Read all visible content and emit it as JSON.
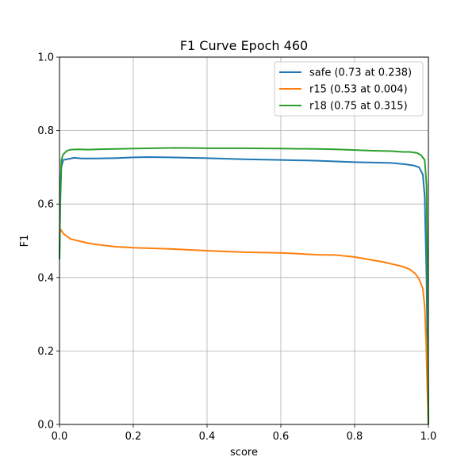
{
  "chart_data": {
    "type": "line",
    "title": "F1 Curve Epoch 460",
    "xlabel": "score",
    "ylabel": "F1",
    "xlim": [
      0,
      1
    ],
    "ylim": [
      0,
      1
    ],
    "grid": true,
    "legend_position": "top-right",
    "x_ticks": [
      "0.0",
      "0.2",
      "0.4",
      "0.6",
      "0.8",
      "1.0"
    ],
    "y_ticks": [
      "0.0",
      "0.2",
      "0.4",
      "0.6",
      "0.8",
      "1.0"
    ],
    "series": [
      {
        "name": "safe (0.73 at 0.238)",
        "color": "#1f77b4",
        "points": [
          [
            0,
            0.45
          ],
          [
            0.002,
            0.6
          ],
          [
            0.005,
            0.7
          ],
          [
            0.01,
            0.72
          ],
          [
            0.02,
            0.722
          ],
          [
            0.04,
            0.726
          ],
          [
            0.06,
            0.724
          ],
          [
            0.1,
            0.724
          ],
          [
            0.15,
            0.725
          ],
          [
            0.2,
            0.727
          ],
          [
            0.238,
            0.728
          ],
          [
            0.3,
            0.727
          ],
          [
            0.4,
            0.725
          ],
          [
            0.5,
            0.722
          ],
          [
            0.6,
            0.72
          ],
          [
            0.7,
            0.718
          ],
          [
            0.8,
            0.714
          ],
          [
            0.85,
            0.713
          ],
          [
            0.9,
            0.712
          ],
          [
            0.94,
            0.708
          ],
          [
            0.96,
            0.705
          ],
          [
            0.975,
            0.7
          ],
          [
            0.985,
            0.68
          ],
          [
            0.99,
            0.62
          ],
          [
            0.995,
            0.4
          ],
          [
            0.998,
            0.15
          ],
          [
            1.0,
            0.0
          ]
        ]
      },
      {
        "name": "r15 (0.53 at 0.004)",
        "color": "#ff7f0e",
        "points": [
          [
            0,
            0.52
          ],
          [
            0.004,
            0.53
          ],
          [
            0.01,
            0.52
          ],
          [
            0.02,
            0.512
          ],
          [
            0.03,
            0.505
          ],
          [
            0.05,
            0.5
          ],
          [
            0.08,
            0.493
          ],
          [
            0.1,
            0.49
          ],
          [
            0.15,
            0.484
          ],
          [
            0.2,
            0.481
          ],
          [
            0.3,
            0.478
          ],
          [
            0.4,
            0.473
          ],
          [
            0.5,
            0.469
          ],
          [
            0.6,
            0.467
          ],
          [
            0.7,
            0.462
          ],
          [
            0.75,
            0.461
          ],
          [
            0.8,
            0.456
          ],
          [
            0.85,
            0.447
          ],
          [
            0.88,
            0.442
          ],
          [
            0.9,
            0.437
          ],
          [
            0.93,
            0.43
          ],
          [
            0.95,
            0.422
          ],
          [
            0.965,
            0.41
          ],
          [
            0.975,
            0.395
          ],
          [
            0.985,
            0.37
          ],
          [
            0.99,
            0.32
          ],
          [
            0.994,
            0.22
          ],
          [
            0.997,
            0.1
          ],
          [
            1.0,
            0.0
          ]
        ]
      },
      {
        "name": "r18 (0.75 at 0.315)",
        "color": "#2ca02c",
        "points": [
          [
            0,
            0.45
          ],
          [
            0.002,
            0.62
          ],
          [
            0.005,
            0.72
          ],
          [
            0.01,
            0.735
          ],
          [
            0.02,
            0.745
          ],
          [
            0.03,
            0.748
          ],
          [
            0.05,
            0.749
          ],
          [
            0.08,
            0.748
          ],
          [
            0.1,
            0.749
          ],
          [
            0.15,
            0.75
          ],
          [
            0.2,
            0.751
          ],
          [
            0.315,
            0.753
          ],
          [
            0.4,
            0.752
          ],
          [
            0.5,
            0.752
          ],
          [
            0.6,
            0.751
          ],
          [
            0.7,
            0.75
          ],
          [
            0.75,
            0.749
          ],
          [
            0.8,
            0.747
          ],
          [
            0.85,
            0.745
          ],
          [
            0.9,
            0.744
          ],
          [
            0.93,
            0.742
          ],
          [
            0.95,
            0.742
          ],
          [
            0.97,
            0.739
          ],
          [
            0.98,
            0.733
          ],
          [
            0.99,
            0.72
          ],
          [
            0.995,
            0.65
          ],
          [
            0.998,
            0.35
          ],
          [
            1.0,
            0.0
          ]
        ]
      }
    ]
  }
}
